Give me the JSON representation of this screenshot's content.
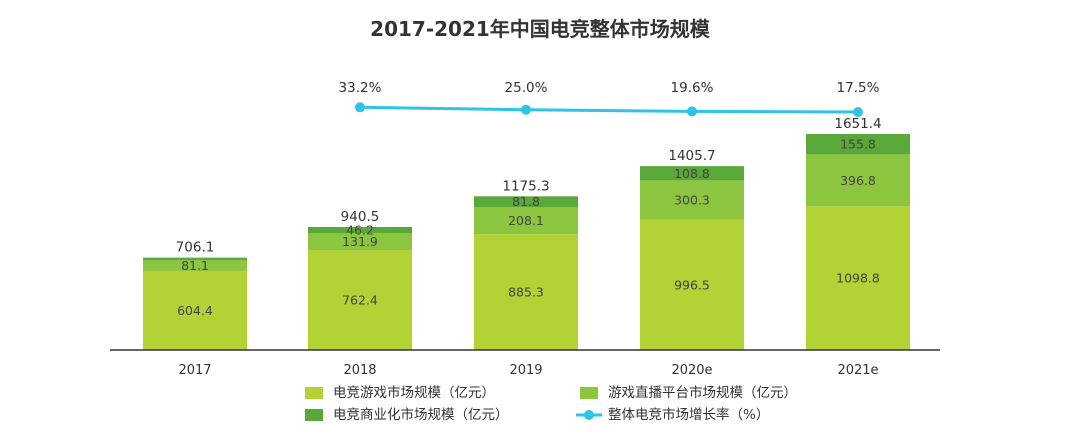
{
  "chart_data": {
    "type": "bar",
    "stacked": true,
    "title": "2017-2021年中国电竞整体市场规模",
    "categories": [
      "2017",
      "2018",
      "2019",
      "2020e",
      "2021e"
    ],
    "series": [
      {
        "name": "电竞游戏市场规模（亿元）",
        "color": "#b2d235",
        "values": [
          604.4,
          762.4,
          885.3,
          996.5,
          1098.8
        ]
      },
      {
        "name": "游戏直播平台市场规模（亿元）",
        "color": "#8cc63f",
        "values": [
          81.1,
          131.9,
          208.1,
          300.3,
          396.8
        ]
      },
      {
        "name": "电竞商业化市场规模（亿元）",
        "color": "#5aa83a",
        "values": [
          20.6,
          46.2,
          81.8,
          108.8,
          155.8
        ],
        "labels": [
          "",
          "46.2",
          "81.8",
          "108.8",
          "155.8"
        ]
      }
    ],
    "totals": [
      "706.1",
      "940.5",
      "1175.3",
      "1405.7",
      "1651.4"
    ],
    "line": {
      "name": "整体电竞市场增长率（%）",
      "color": "#2ec4e6",
      "values": [
        null,
        33.2,
        25.0,
        19.6,
        17.5
      ],
      "labels": [
        "",
        "33.2%",
        "25.0%",
        "19.6%",
        "17.5%"
      ]
    },
    "ylim": [
      0,
      1700
    ],
    "legend_position": "bottom"
  }
}
